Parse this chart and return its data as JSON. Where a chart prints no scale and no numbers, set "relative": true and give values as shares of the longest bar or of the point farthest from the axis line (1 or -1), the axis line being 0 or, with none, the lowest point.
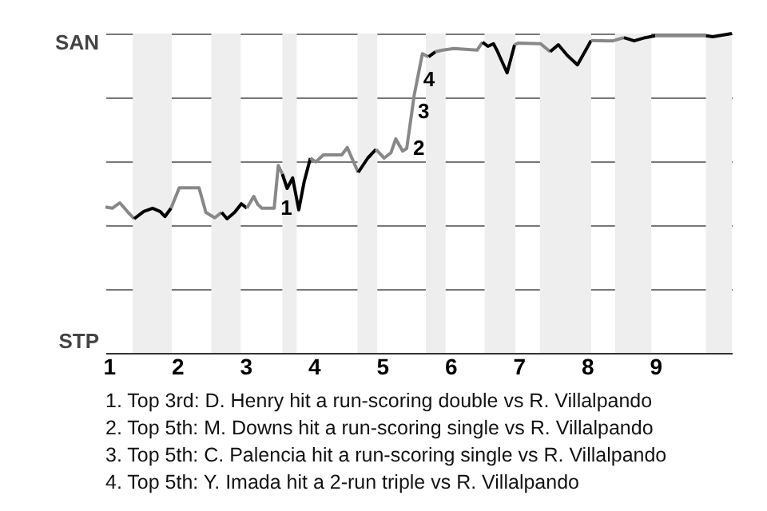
{
  "chart_data": {
    "type": "line",
    "relative": true,
    "xlim": [
      0.95,
      10.12
    ],
    "xticks": [
      1,
      2,
      3,
      4,
      5,
      6,
      7,
      8,
      9
    ],
    "grid": "y",
    "series": [
      {
        "color": "#888888",
        "x": [
          0.95,
          1.05,
          1.16,
          1.27,
          1.37
        ],
        "values": [
          0.457,
          0.453,
          0.47,
          0.443,
          0.42
        ]
      },
      {
        "color": "#000000",
        "x": [
          1.37,
          1.51,
          1.64,
          1.75,
          1.82,
          1.91
        ],
        "values": [
          0.42,
          0.443,
          0.453,
          0.443,
          0.427,
          0.453
        ]
      },
      {
        "color": "#888888",
        "x": [
          1.91,
          2.03,
          2.32,
          2.42,
          2.55,
          2.65
        ],
        "values": [
          0.453,
          0.517,
          0.517,
          0.44,
          0.423,
          0.44
        ]
      },
      {
        "color": "#010101",
        "x": [
          2.65,
          2.73,
          2.84,
          2.94,
          3.02
        ],
        "values": [
          0.44,
          0.42,
          0.44,
          0.467,
          0.453
        ]
      },
      {
        "color": "#888888",
        "x": [
          3.02,
          3.12,
          3.18,
          3.24,
          3.42,
          3.48,
          3.54
        ],
        "values": [
          0.453,
          0.49,
          0.465,
          0.453,
          0.453,
          0.587,
          0.56
        ]
      },
      {
        "color": "#020202",
        "x": [
          3.54,
          3.61,
          3.69,
          3.78,
          3.86,
          3.95
        ],
        "values": [
          0.56,
          0.515,
          0.548,
          0.448,
          0.537,
          0.61
        ]
      },
      {
        "color": "#888888",
        "x": [
          3.95,
          4.03,
          4.14,
          4.41,
          4.49,
          4.65
        ],
        "values": [
          0.61,
          0.598,
          0.62,
          0.62,
          0.643,
          0.565
        ]
      },
      {
        "color": "#030303",
        "x": [
          4.65,
          4.79,
          4.91
        ],
        "values": [
          0.565,
          0.61,
          0.637
        ]
      },
      {
        "color": "#888888",
        "x": [
          4.91,
          5.03,
          5.13,
          5.2,
          5.3,
          5.36,
          5.47,
          5.59,
          5.68
        ],
        "values": [
          0.637,
          0.61,
          0.627,
          0.67,
          0.632,
          0.64,
          0.807,
          0.937,
          0.927
        ]
      },
      {
        "color": "#040404",
        "x": [
          5.68,
          5.78
        ],
        "values": [
          0.927,
          0.943
        ]
      },
      {
        "color": "#888888",
        "x": [
          5.78,
          5.89,
          6.05,
          6.39,
          6.47
        ],
        "values": [
          0.943,
          0.948,
          0.953,
          0.948,
          0.973
        ]
      },
      {
        "color": "#050505",
        "x": [
          6.47,
          6.55,
          6.63,
          6.68,
          6.83,
          6.94
        ],
        "values": [
          0.973,
          0.96,
          0.968,
          0.948,
          0.877,
          0.965
        ]
      },
      {
        "color": "#888888",
        "x": [
          6.94,
          6.99,
          7.32,
          7.46
        ],
        "values": [
          0.965,
          0.97,
          0.968,
          0.943
        ]
      },
      {
        "color": "#060606",
        "x": [
          7.46,
          7.58,
          7.71,
          7.86,
          8.06
        ],
        "values": [
          0.943,
          0.965,
          0.932,
          0.902,
          0.978
        ]
      },
      {
        "color": "#888888",
        "x": [
          8.06,
          8.38,
          8.54
        ],
        "values": [
          0.978,
          0.977,
          0.987
        ]
      },
      {
        "color": "#070707",
        "x": [
          8.54,
          8.69,
          8.85,
          9.0
        ],
        "values": [
          0.987,
          0.977,
          0.987,
          0.993
        ]
      },
      {
        "color": "#888888",
        "x": [
          9.0,
          9.74
        ],
        "values": [
          0.993,
          0.993
        ]
      },
      {
        "color": "#080808",
        "x": [
          9.74,
          9.84,
          10.12
        ],
        "values": [
          0.993,
          0.99,
          1.0
        ]
      }
    ],
    "bands": [
      {
        "axis": "x",
        "from": 1.35,
        "to": 1.92,
        "color": "#eeeeee"
      },
      {
        "axis": "x",
        "from": 2.5,
        "to": 2.93,
        "color": "#eeeeee"
      },
      {
        "axis": "x",
        "from": 3.54,
        "to": 3.75,
        "color": "#eeeeee"
      },
      {
        "axis": "x",
        "from": 4.64,
        "to": 4.93,
        "color": "#eeeeee"
      },
      {
        "axis": "x",
        "from": 5.64,
        "to": 5.93,
        "color": "#eeeeee"
      },
      {
        "axis": "x",
        "from": 6.5,
        "to": 6.95,
        "color": "#eeeeee"
      },
      {
        "axis": "x",
        "from": 7.31,
        "to": 8.06,
        "color": "#eeeeee"
      },
      {
        "axis": "x",
        "from": 8.41,
        "to": 8.94,
        "color": "#eeeeee"
      },
      {
        "axis": "x",
        "from": 9.74,
        "to": 10.12,
        "color": "#eeeeee"
      }
    ],
    "annotations": [
      "SAN",
      "STP",
      {
        "text": "1",
        "x": 3.42,
        "y": 0.453
      },
      {
        "text": "2",
        "x": 5.36,
        "y": 0.64
      },
      {
        "text": "3",
        "x": 5.43,
        "y": 0.755
      },
      {
        "text": "4",
        "x": 5.51,
        "y": 0.855
      },
      "1. Top 3rd: D. Henry hit a run-scoring double vs R. Villalpando",
      "2. Top 5th: M. Downs hit a run-scoring single vs R. Villalpando",
      "3. Top 5th: C. Palencia hit a run-scoring single vs R. Villalpando",
      "4. Top 5th: Y. Imada hit a 2-run triple vs R. Villalpando"
    ]
  }
}
